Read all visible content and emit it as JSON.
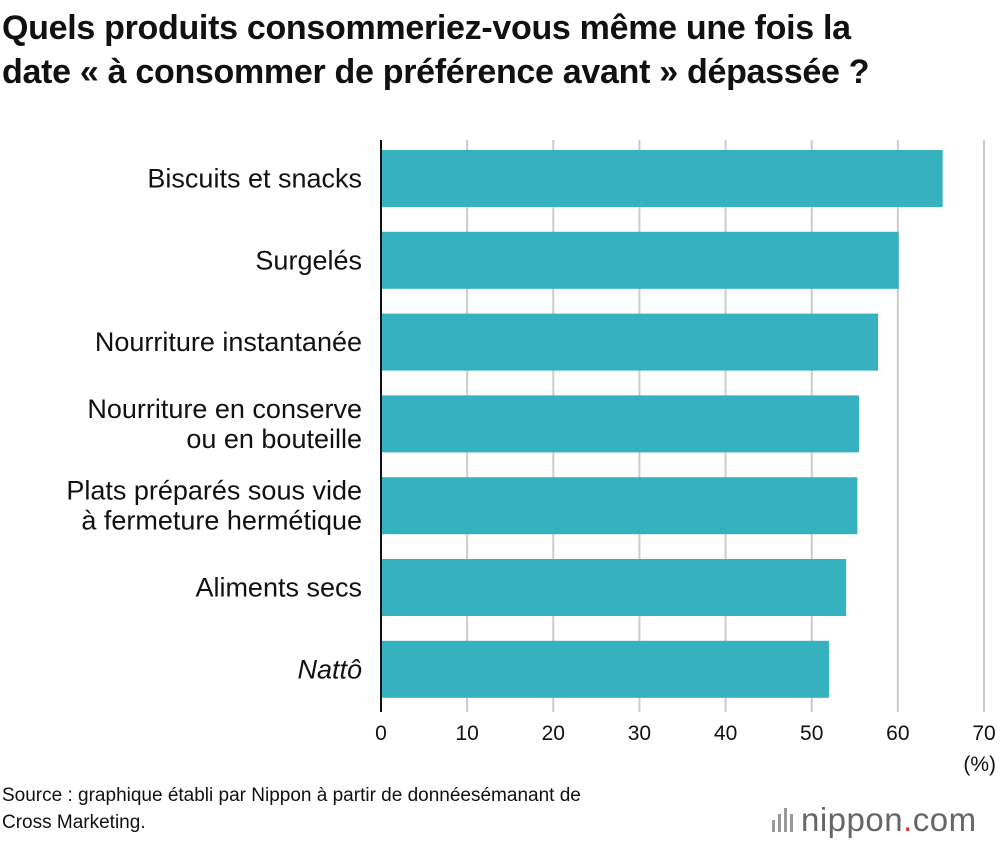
{
  "title_lines": [
    "Quels produits consommeriez-vous même une fois la",
    "date « à consommer de préférence avant » dépassée ?"
  ],
  "chart_data": {
    "type": "bar",
    "orientation": "horizontal",
    "title": "Quels produits consommeriez-vous même une fois la date « à consommer de préférence avant » dépassée ?",
    "categories": [
      [
        "Biscuits et snacks"
      ],
      [
        "Surgelés"
      ],
      [
        "Nourriture instantanée"
      ],
      [
        "Nourriture en conserve",
        "ou en bouteille"
      ],
      [
        "Plats préparés sous vide",
        "à fermeture hermétique"
      ],
      [
        "Aliments secs"
      ],
      [
        "Nattô"
      ]
    ],
    "italic_categories": [
      "Nattô"
    ],
    "values": [
      65.2,
      60.1,
      57.7,
      55.5,
      55.3,
      54.0,
      52.0
    ],
    "xlim": [
      0,
      70
    ],
    "xticks": [
      0,
      10,
      20,
      30,
      40,
      50,
      60,
      70
    ],
    "unit_label": "(%)",
    "grid": true,
    "bar_color": "#35b1bf",
    "grid_color": "#cccccc"
  },
  "source": "Source : graphique établi par Nippon à partir de donnéesémanant de\nCross Marketing.",
  "logo": {
    "name": "nippon",
    "dot": ".",
    "tld": "com",
    "dot_color": "#e8322c"
  }
}
